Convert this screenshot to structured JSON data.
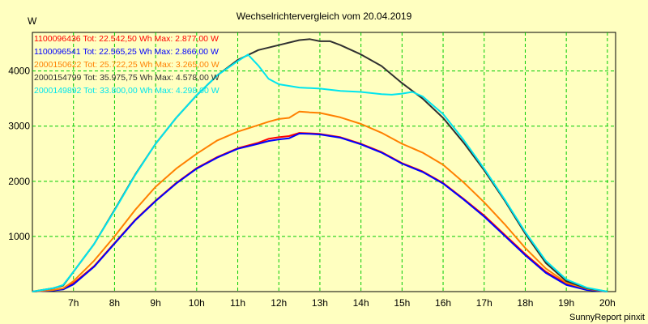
{
  "chart_data": {
    "type": "line",
    "title": "Wechselrichtervergleich vom 20.04.2019",
    "ylabel": "W",
    "xlabel": "",
    "footer": "SunnyReport pinxit",
    "x_ticks": [
      "7h",
      "8h",
      "9h",
      "10h",
      "11h",
      "12h",
      "13h",
      "14h",
      "15h",
      "16h",
      "17h",
      "18h",
      "19h",
      "20h"
    ],
    "y_ticks": [
      "1000",
      "2000",
      "3000",
      "4000"
    ],
    "xlim": [
      6.0,
      20.2
    ],
    "ylim": [
      0,
      4700
    ],
    "grid": true,
    "legend_position": "top-left",
    "background_color": "#ffffc0",
    "grid_color": "#00cc00",
    "series": [
      {
        "name": "1100096436",
        "legend": "1100096436 Tot: 22.542,50 Wh Max: 2.877,00 W",
        "color": "#ff0000",
        "x": [
          6.0,
          6.5,
          6.75,
          7.0,
          7.5,
          8.0,
          8.5,
          9.0,
          9.5,
          10.0,
          10.5,
          11.0,
          11.5,
          11.75,
          12.0,
          12.25,
          12.5,
          12.75,
          13.0,
          13.5,
          14.0,
          14.5,
          15.0,
          15.5,
          16.0,
          16.5,
          17.0,
          17.5,
          18.0,
          18.5,
          19.0,
          19.5,
          20.0
        ],
        "y": [
          0,
          30,
          50,
          150,
          460,
          880,
          1300,
          1650,
          1970,
          2240,
          2440,
          2600,
          2700,
          2770,
          2800,
          2820,
          2877,
          2870,
          2860,
          2800,
          2680,
          2530,
          2330,
          2180,
          1970,
          1680,
          1380,
          1030,
          680,
          360,
          140,
          40,
          0
        ]
      },
      {
        "name": "1100096541",
        "legend": "1100096541 Tot: 22.565,25 Wh Max: 2.866,00 W",
        "color": "#0000ff",
        "x": [
          6.0,
          6.5,
          6.75,
          7.0,
          7.5,
          8.0,
          8.5,
          9.0,
          9.5,
          10.0,
          10.5,
          11.0,
          11.5,
          11.75,
          12.0,
          12.25,
          12.5,
          12.75,
          13.0,
          13.5,
          14.0,
          14.5,
          15.0,
          15.5,
          16.0,
          16.5,
          17.0,
          17.5,
          18.0,
          18.5,
          19.0,
          19.5,
          20.0
        ],
        "y": [
          0,
          20,
          40,
          130,
          450,
          870,
          1290,
          1640,
          1960,
          2230,
          2430,
          2590,
          2680,
          2730,
          2760,
          2780,
          2866,
          2860,
          2850,
          2790,
          2670,
          2520,
          2320,
          2170,
          1960,
          1670,
          1360,
          1010,
          660,
          340,
          120,
          30,
          0
        ]
      },
      {
        "name": "2000150622",
        "legend": "2000150622 Tot: 25.722,25 Wh Max: 3.265,00 W",
        "color": "#ff8000",
        "x": [
          6.0,
          6.5,
          6.75,
          7.0,
          7.5,
          8.0,
          8.5,
          9.0,
          9.5,
          10.0,
          10.5,
          11.0,
          11.5,
          11.75,
          12.0,
          12.25,
          12.5,
          12.75,
          13.0,
          13.5,
          14.0,
          14.5,
          15.0,
          15.5,
          16.0,
          16.5,
          17.0,
          17.5,
          18.0,
          18.5,
          19.0,
          19.5,
          20.0
        ],
        "y": [
          0,
          30,
          60,
          190,
          560,
          1000,
          1480,
          1900,
          2230,
          2500,
          2740,
          2900,
          3020,
          3080,
          3130,
          3150,
          3265,
          3250,
          3240,
          3160,
          3040,
          2880,
          2680,
          2520,
          2300,
          1980,
          1620,
          1220,
          790,
          420,
          160,
          50,
          0
        ]
      },
      {
        "name": "2000154799",
        "legend": "2000154799 Tot: 35.975,75 Wh Max: 4.578,00 W",
        "color": "#303030",
        "x": [
          6.0,
          6.5,
          6.75,
          7.0,
          7.5,
          8.0,
          8.5,
          9.0,
          9.5,
          10.0,
          10.5,
          11.0,
          11.5,
          12.0,
          12.5,
          12.75,
          13.0,
          13.25,
          13.5,
          14.0,
          14.5,
          15.0,
          15.5,
          16.0,
          16.5,
          17.0,
          17.5,
          18.0,
          18.5,
          19.0,
          19.5,
          20.0
        ],
        "y": [
          0,
          60,
          110,
          360,
          860,
          1480,
          2120,
          2680,
          3150,
          3560,
          3920,
          4200,
          4380,
          4470,
          4560,
          4578,
          4540,
          4540,
          4470,
          4300,
          4090,
          3780,
          3500,
          3150,
          2700,
          2200,
          1650,
          1050,
          520,
          190,
          60,
          0
        ]
      },
      {
        "name": "2000149892",
        "legend": "2000149892 Tot: 33.800,00 Wh Max: 4.298,00 W",
        "color": "#00e5ee",
        "x": [
          6.0,
          6.5,
          6.75,
          7.0,
          7.5,
          8.0,
          8.5,
          9.0,
          9.5,
          10.0,
          10.5,
          11.0,
          11.25,
          11.5,
          11.75,
          12.0,
          12.5,
          13.0,
          13.5,
          14.0,
          14.5,
          14.75,
          15.0,
          15.25,
          15.5,
          16.0,
          16.5,
          17.0,
          17.5,
          18.0,
          18.5,
          19.0,
          19.5,
          20.0
        ],
        "y": [
          0,
          60,
          120,
          360,
          860,
          1470,
          2110,
          2680,
          3150,
          3560,
          3920,
          4180,
          4298,
          4100,
          3860,
          3760,
          3700,
          3680,
          3640,
          3620,
          3580,
          3570,
          3590,
          3620,
          3540,
          3220,
          2750,
          2230,
          1670,
          1080,
          560,
          220,
          70,
          0
        ]
      }
    ]
  }
}
